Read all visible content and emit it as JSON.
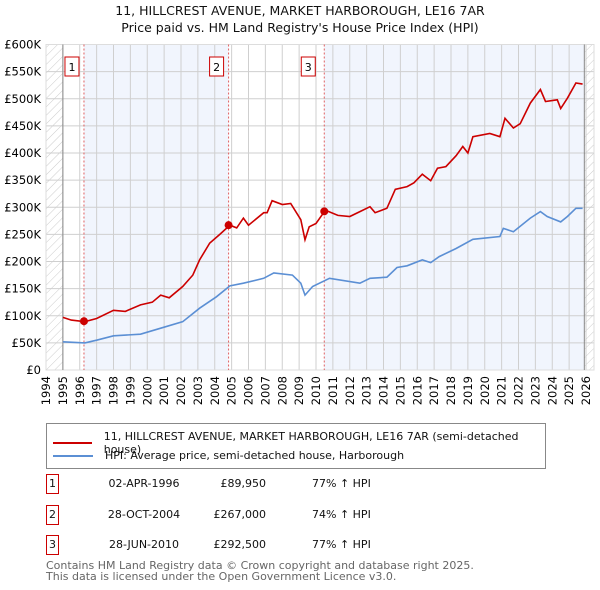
{
  "chart_data": {
    "type": "line",
    "title": "11, HILLCREST AVENUE, MARKET HARBOROUGH, LE16 7AR",
    "subtitle": "Price paid vs. HM Land Registry's House Price Index (HPI)",
    "xlim": [
      1994,
      2026
    ],
    "ylim": [
      0,
      600000
    ],
    "grid": true,
    "x_ticks": [
      "1994",
      "1995",
      "1996",
      "1997",
      "1998",
      "1999",
      "2000",
      "2001",
      "2002",
      "2003",
      "2004",
      "2005",
      "2006",
      "2007",
      "2008",
      "2009",
      "2010",
      "2011",
      "2012",
      "2013",
      "2014",
      "2015",
      "2016",
      "2017",
      "2018",
      "2019",
      "2020",
      "2021",
      "2022",
      "2023",
      "2024",
      "2025",
      "2026"
    ],
    "y_ticks": [
      {
        "v": 0,
        "label": "£0"
      },
      {
        "v": 50000,
        "label": "£50K"
      },
      {
        "v": 100000,
        "label": "£100K"
      },
      {
        "v": 150000,
        "label": "£150K"
      },
      {
        "v": 200000,
        "label": "£200K"
      },
      {
        "v": 250000,
        "label": "£250K"
      },
      {
        "v": 300000,
        "label": "£300K"
      },
      {
        "v": 350000,
        "label": "£350K"
      },
      {
        "v": 400000,
        "label": "£400K"
      },
      {
        "v": 450000,
        "label": "£450K"
      },
      {
        "v": 500000,
        "label": "£500K"
      },
      {
        "v": 550000,
        "label": "£550K"
      },
      {
        "v": 600000,
        "label": "£600K"
      }
    ],
    "data_range": [
      1995,
      2025.9
    ],
    "series": [
      {
        "name": "11, HILLCREST AVENUE, MARKET HARBOROUGH, LE16 7AR (semi-detached house)",
        "color": "#cc0000",
        "points": [
          [
            1995.0,
            97
          ],
          [
            1995.5,
            92
          ],
          [
            1996.3,
            89
          ],
          [
            1997,
            95
          ],
          [
            1998,
            110
          ],
          [
            1998.7,
            108
          ],
          [
            1999.6,
            120
          ],
          [
            2000.3,
            125
          ],
          [
            2000.8,
            138
          ],
          [
            2001.3,
            133
          ],
          [
            2002.1,
            154
          ],
          [
            2002.7,
            175
          ],
          [
            2003.1,
            203
          ],
          [
            2003.7,
            234
          ],
          [
            2004.3,
            250
          ],
          [
            2004.9,
            267
          ],
          [
            2005.3,
            262
          ],
          [
            2005.7,
            280
          ],
          [
            2006.0,
            267
          ],
          [
            2006.9,
            290
          ],
          [
            2007.1,
            290
          ],
          [
            2007.4,
            312
          ],
          [
            2008.0,
            305
          ],
          [
            2008.5,
            307
          ],
          [
            2009.1,
            277
          ],
          [
            2009.35,
            240
          ],
          [
            2009.6,
            264
          ],
          [
            2010.0,
            270
          ],
          [
            2010.5,
            292
          ],
          [
            2010.6,
            294
          ],
          [
            2011.3,
            285
          ],
          [
            2012.0,
            283
          ],
          [
            2012.6,
            292
          ],
          [
            2013.2,
            301
          ],
          [
            2013.5,
            290
          ],
          [
            2014.2,
            298
          ],
          [
            2014.7,
            333
          ],
          [
            2015.4,
            338
          ],
          [
            2015.8,
            345
          ],
          [
            2016.3,
            361
          ],
          [
            2016.8,
            349
          ],
          [
            2017.2,
            372
          ],
          [
            2017.7,
            375
          ],
          [
            2018.3,
            395
          ],
          [
            2018.7,
            412
          ],
          [
            2019.0,
            400
          ],
          [
            2019.3,
            430
          ],
          [
            2020.3,
            436
          ],
          [
            2020.9,
            430
          ],
          [
            2021.2,
            464
          ],
          [
            2021.7,
            446
          ],
          [
            2022.1,
            454
          ],
          [
            2022.7,
            492
          ],
          [
            2023.3,
            517
          ],
          [
            2023.6,
            495
          ],
          [
            2024.3,
            498
          ],
          [
            2024.5,
            482
          ],
          [
            2024.9,
            501
          ],
          [
            2025.4,
            529
          ],
          [
            2025.8,
            527
          ]
        ]
      },
      {
        "name": "HPI: Average price, semi-detached house, Harborough",
        "color": "#5b8fd4",
        "points": [
          [
            1995,
            52
          ],
          [
            1996.3,
            50
          ],
          [
            1997,
            55
          ],
          [
            1998,
            63
          ],
          [
            1999.6,
            66
          ],
          [
            2000.8,
            77
          ],
          [
            2002.1,
            89
          ],
          [
            2003.1,
            114
          ],
          [
            2004.1,
            135
          ],
          [
            2004.9,
            155
          ],
          [
            2005.7,
            160
          ],
          [
            2006.9,
            169
          ],
          [
            2007.5,
            179
          ],
          [
            2008.6,
            175
          ],
          [
            2009.1,
            160
          ],
          [
            2009.35,
            138
          ],
          [
            2009.8,
            154
          ],
          [
            2010.8,
            169
          ],
          [
            2012.6,
            160
          ],
          [
            2013.2,
            169
          ],
          [
            2014.2,
            171
          ],
          [
            2014.8,
            189
          ],
          [
            2015.4,
            192
          ],
          [
            2016.3,
            203
          ],
          [
            2016.8,
            198
          ],
          [
            2017.3,
            209
          ],
          [
            2018.3,
            224
          ],
          [
            2019.3,
            241
          ],
          [
            2020.9,
            246
          ],
          [
            2021.1,
            261
          ],
          [
            2021.7,
            255
          ],
          [
            2022.7,
            280
          ],
          [
            2023.3,
            292
          ],
          [
            2023.7,
            283
          ],
          [
            2024.5,
            273
          ],
          [
            2024.9,
            283
          ],
          [
            2025.4,
            298
          ],
          [
            2025.8,
            298
          ]
        ]
      }
    ],
    "value_unit": "thousands GBP",
    "sales": [
      {
        "label": "1",
        "x": 1996.25,
        "date": "02-APR-1996",
        "price": 89950,
        "price_text": "£89,950",
        "hpi": "77% ↑ HPI"
      },
      {
        "label": "2",
        "x": 2004.82,
        "date": "28-OCT-2004",
        "price": 267000,
        "price_text": "£267,000",
        "hpi": "74% ↑ HPI"
      },
      {
        "label": "3",
        "x": 2010.49,
        "date": "28-JUN-2010",
        "price": 292500,
        "price_text": "£292,500",
        "hpi": "77% ↑ HPI"
      }
    ],
    "legend_position": "below"
  },
  "footer": {
    "line1": "Contains HM Land Registry data © Crown copyright and database right 2025.",
    "line2": "This data is licensed under the Open Government Licence v3.0."
  }
}
